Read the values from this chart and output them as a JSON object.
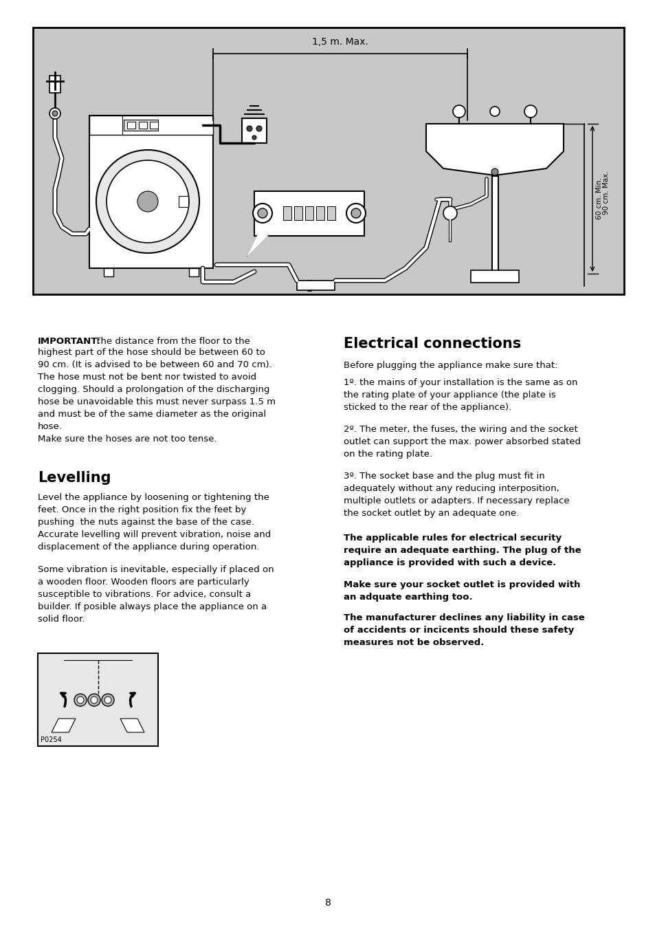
{
  "page_background": "#ffffff",
  "diagram_background": "#c8c8c8",
  "page_number": "8",
  "important_label": "IMPORTANT:",
  "important_text": " The distance from the floor to the\nhighest part of the hose should be between 60 to\n90 cm. (It is advised to be between 60 and 70 cm).\nThe hose must not be bent nor twisted to avoid\nclogging. Should a prolongation of the discharging\nhose be unavoidable this must never surpass 1.5 m\nand must be of the same diameter as the original\nhose.\nMake sure the hoses are not too tense.",
  "levelling_title": "Levelling",
  "levelling_text1": "Level the appliance by loosening or tightening the\nfeet. Once in the right position fix the feet by\npushing  the nuts against the base of the case.\nAccurate levelling will prevent vibration, noise and\ndisplacement of the appliance during operation.",
  "levelling_text2": "Some vibration is inevitable, especially if placed on\na wooden floor. Wooden floors are particularly\nsusceptible to vibrations. For advice, consult a\nbuilder. If posible always place the appliance on a\nsolid floor.",
  "image_label": "P0254",
  "electrical_title": "Electrical connections",
  "electrical_intro": "Before plugging the appliance make sure that:",
  "electrical_1": "1º. the mains of your installation is the same as on\nthe rating plate of your appliance (the plate is\nsticked to the rear of the appliance).",
  "electrical_2": "2º. The meter, the fuses, the wiring and the socket\noutlet can support the max. power absorbed stated\non the rating plate.",
  "electrical_3": "3º. The socket base and the plug must fit in\nadequately without any reducing interposition,\nmultiple outlets or adapters. If necessary replace\nthe socket outlet by an adequate one.",
  "electrical_bold1": "The applicable rules for electrical security\nrequire an adequate earthing. The plug of the\nappliance is provided with such a device.",
  "electrical_bold2": "Make sure your socket outlet is provided with\nan adquate earthing too.",
  "electrical_bold3": "The manufacturer declines any liability in case\nof accidents or incicents should these safety\nmeasures not be observed.",
  "dim_label": "1,5 m. Max.",
  "dim_60": "60 cm. Min.",
  "dim_90": "90 cm. Max."
}
